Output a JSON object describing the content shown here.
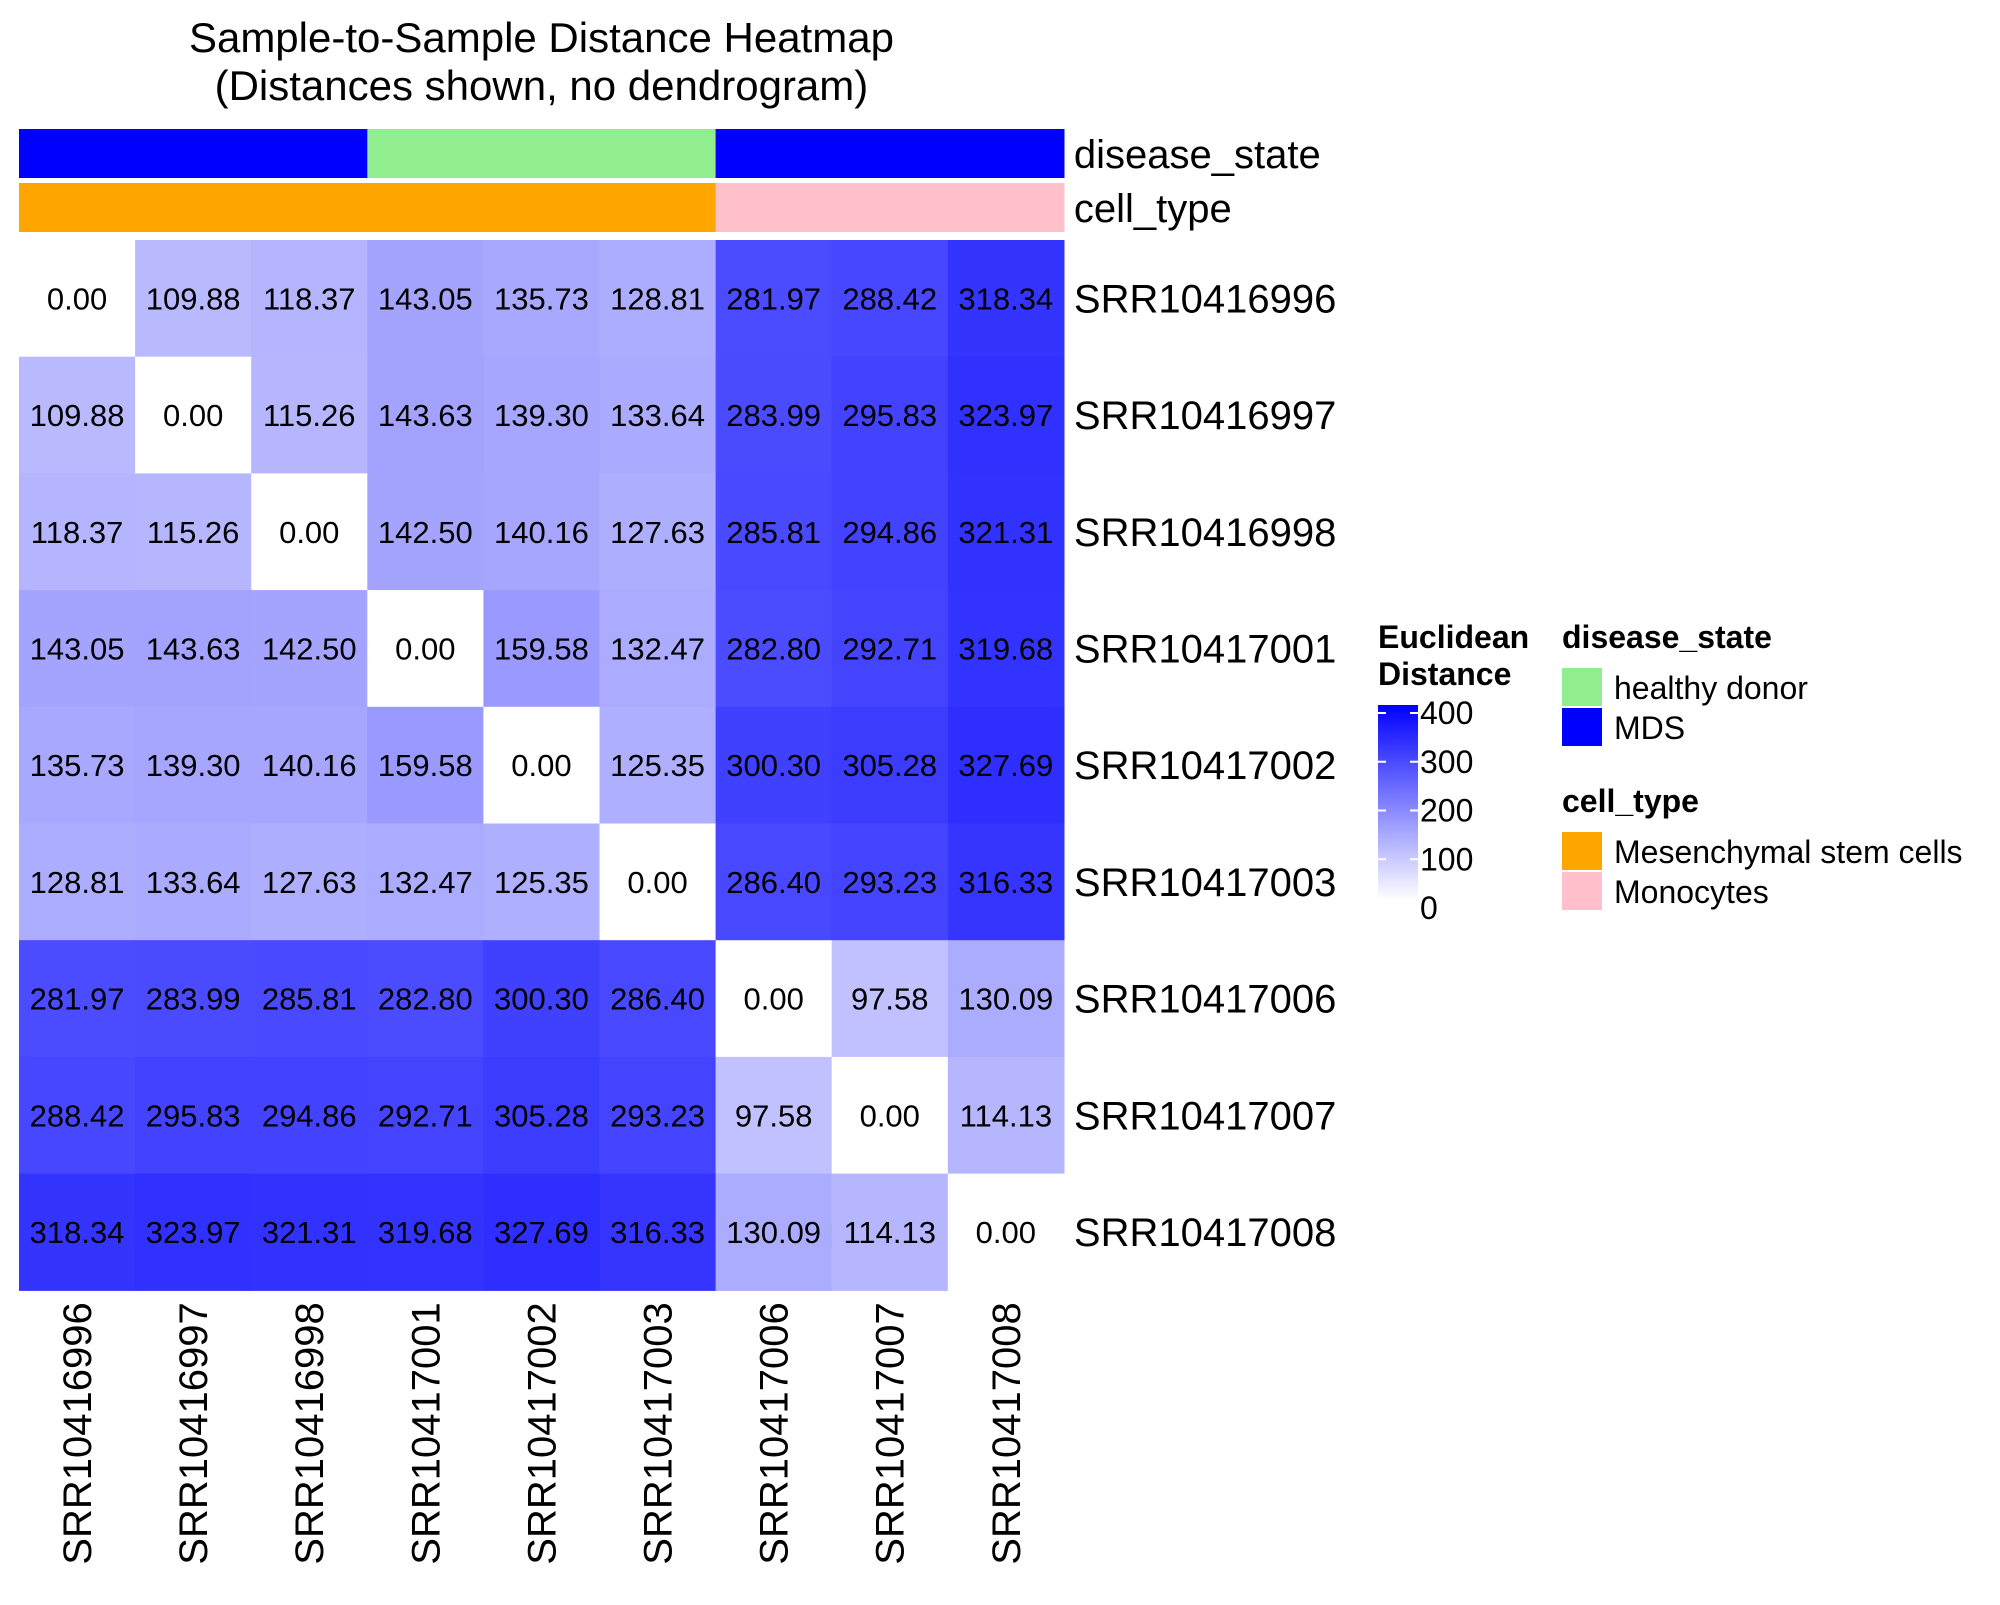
{
  "chart_data": {
    "type": "heatmap",
    "title": "Sample-to-Sample Distance Heatmap",
    "subtitle": "(Distances shown, no dendrogram)",
    "samples": [
      "SRR10416996",
      "SRR10416997",
      "SRR10416998",
      "SRR10417001",
      "SRR10417002",
      "SRR10417003",
      "SRR10417006",
      "SRR10417007",
      "SRR10417008"
    ],
    "matrix": [
      [
        0.0,
        109.88,
        118.37,
        143.05,
        135.73,
        128.81,
        281.97,
        288.42,
        318.34
      ],
      [
        109.88,
        0.0,
        115.26,
        143.63,
        139.3,
        133.64,
        283.99,
        295.83,
        323.97
      ],
      [
        118.37,
        115.26,
        0.0,
        142.5,
        140.16,
        127.63,
        285.81,
        294.86,
        321.31
      ],
      [
        143.05,
        143.63,
        142.5,
        0.0,
        159.58,
        132.47,
        282.8,
        292.71,
        319.68
      ],
      [
        135.73,
        139.3,
        140.16,
        159.58,
        0.0,
        125.35,
        300.3,
        305.28,
        327.69
      ],
      [
        128.81,
        133.64,
        127.63,
        132.47,
        125.35,
        0.0,
        286.4,
        293.23,
        316.33
      ],
      [
        281.97,
        283.99,
        285.81,
        282.8,
        300.3,
        286.4,
        0.0,
        97.58,
        130.09
      ],
      [
        288.42,
        295.83,
        294.86,
        292.71,
        305.28,
        293.23,
        97.58,
        0.0,
        114.13
      ],
      [
        318.34,
        323.97,
        321.31,
        319.68,
        327.69,
        316.33,
        130.09,
        114.13,
        0.0
      ]
    ],
    "annotations": {
      "disease_state": [
        "MDS",
        "MDS",
        "MDS",
        "healthy donor",
        "healthy donor",
        "healthy donor",
        "MDS",
        "MDS",
        "MDS"
      ],
      "cell_type": [
        "Mesenchymal stem cells",
        "Mesenchymal stem cells",
        "Mesenchymal stem cells",
        "Mesenchymal stem cells",
        "Mesenchymal stem cells",
        "Mesenchymal stem cells",
        "Monocytes",
        "Monocytes",
        "Monocytes"
      ]
    },
    "annotation_titles": [
      "disease_state",
      "cell_type"
    ],
    "color_scale": {
      "title_lines": [
        "Euclidean",
        "Distance"
      ],
      "domain": [
        0,
        400
      ],
      "colors": [
        "#ffffff",
        "#0000ff"
      ],
      "ticks": [
        0,
        100,
        200,
        300,
        400
      ]
    },
    "legends": {
      "disease_state": {
        "title": "disease_state",
        "items": [
          {
            "label": "healthy donor",
            "color": "#90ee90"
          },
          {
            "label": "MDS",
            "color": "#0000ff"
          }
        ]
      },
      "cell_type": {
        "title": "cell_type",
        "items": [
          {
            "label": "Mesenchymal stem cells",
            "color": "#ffa500"
          },
          {
            "label": "Monocytes",
            "color": "#ffc0cb"
          }
        ]
      }
    },
    "value_format_decimals": 2
  }
}
